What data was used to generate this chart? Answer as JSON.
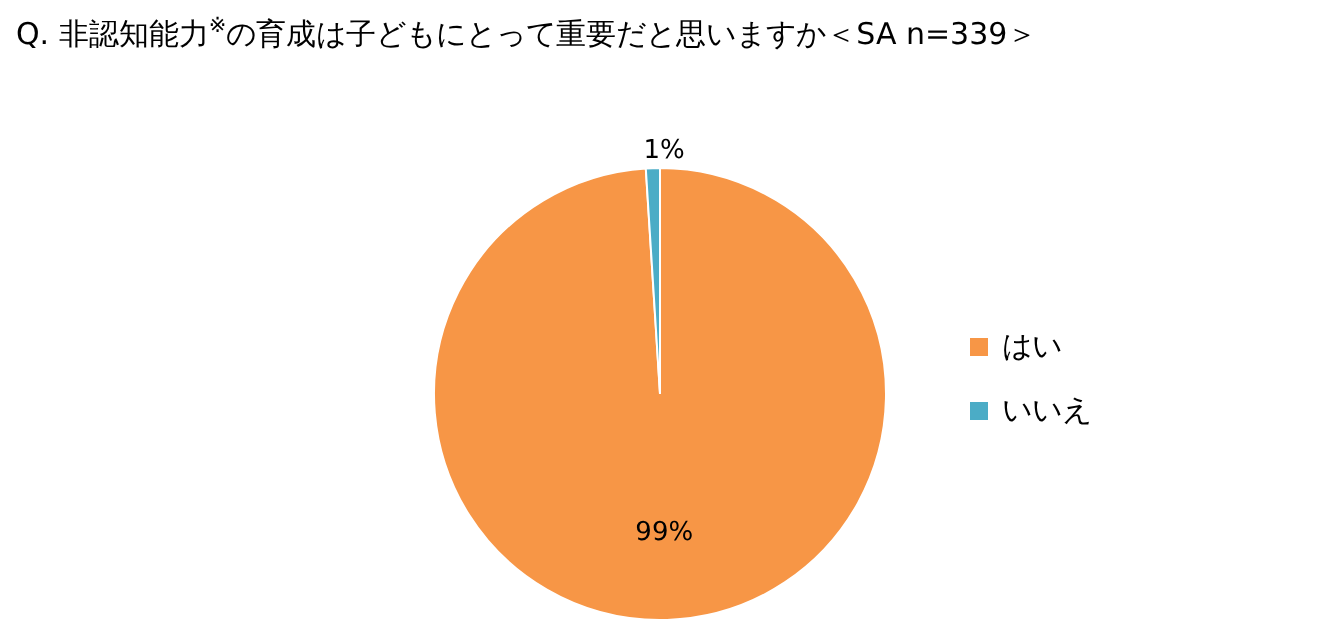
{
  "chart_data": {
    "type": "pie",
    "title": "Q. 非認知能力$^{※}$の育成は子どもにとって重要だと思いますか＜SA n=339＞",
    "categories": [
      "はい",
      "いいえ"
    ],
    "values": [
      99,
      1
    ],
    "colors": [
      "#f79646",
      "#4bacc6"
    ],
    "value_labels": [
      "99%",
      "1%"
    ],
    "legend": "right"
  }
}
